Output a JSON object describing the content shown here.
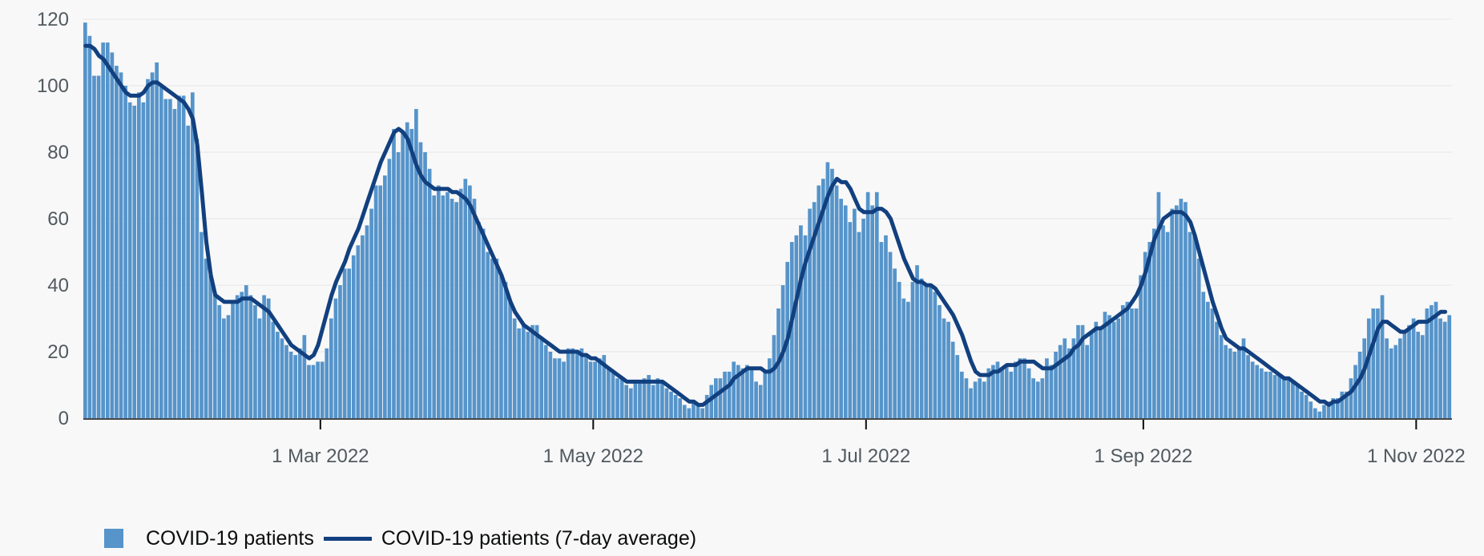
{
  "chart_data": {
    "type": "bar",
    "title": "",
    "xlabel": "",
    "ylabel": "",
    "ylim": [
      0,
      120
    ],
    "y_ticks": [
      0,
      20,
      40,
      60,
      80,
      100,
      120
    ],
    "x_ticks": [
      {
        "date": "2022-03-01",
        "label": "1 Mar 2022"
      },
      {
        "date": "2022-05-01",
        "label": "1 May 2022"
      },
      {
        "date": "2022-07-01",
        "label": "1 Jul 2022"
      },
      {
        "date": "2022-09-01",
        "label": "1 Sep 2022"
      },
      {
        "date": "2022-11-01",
        "label": "1 Nov 2022"
      },
      {
        "date": "2023-01-01",
        "label": ""
      }
    ],
    "x_start": "2022-01-07",
    "grid": true,
    "legend_position": "bottom-left",
    "colors": {
      "bars": "#5694ca",
      "line": "#12407f",
      "grid": "#e6e6e6",
      "axis": "#0b0c0c"
    },
    "series": [
      {
        "name": "COVID-19 patients",
        "kind": "bar",
        "values": [
          119,
          115,
          103,
          103,
          113,
          113,
          110,
          106,
          104,
          100,
          95,
          94,
          98,
          95,
          102,
          104,
          107,
          100,
          96,
          96,
          93,
          97,
          97,
          88,
          98,
          84,
          56,
          48,
          43,
          38,
          34,
          30,
          31,
          35,
          37,
          38,
          40,
          37,
          34,
          30,
          37,
          36,
          29,
          26,
          24,
          22,
          20,
          19,
          21,
          25,
          16,
          16,
          17,
          17,
          21,
          30,
          36,
          40,
          45,
          45,
          49,
          52,
          55,
          58,
          63,
          70,
          70,
          73,
          78,
          87,
          80,
          86,
          89,
          87,
          93,
          83,
          80,
          75,
          67,
          70,
          67,
          68,
          66,
          65,
          69,
          72,
          70,
          66,
          59,
          57,
          50,
          48,
          48,
          43,
          41,
          35,
          30,
          27,
          28,
          26,
          28,
          28,
          24,
          22,
          20,
          18,
          18,
          17,
          21,
          21,
          20,
          21,
          19,
          17,
          17,
          18,
          19,
          15,
          14,
          12,
          12,
          10,
          9,
          11,
          11,
          12,
          13,
          10,
          12,
          11,
          9,
          8,
          7,
          6,
          4,
          3,
          5,
          4,
          3,
          7,
          10,
          12,
          12,
          14,
          14,
          17,
          16,
          15,
          16,
          15,
          11,
          10,
          14,
          18,
          25,
          33,
          40,
          47,
          53,
          55,
          58,
          55,
          63,
          65,
          70,
          72,
          77,
          75,
          70,
          66,
          64,
          59,
          63,
          56,
          60,
          68,
          64,
          68,
          53,
          55,
          50,
          45,
          41,
          36,
          35,
          41,
          46,
          42,
          40,
          40,
          38,
          34,
          30,
          29,
          23,
          19,
          14,
          12,
          9,
          11,
          12,
          11,
          15,
          16,
          17,
          15,
          16,
          14,
          17,
          18,
          18,
          15,
          12,
          11,
          12,
          18,
          16,
          20,
          22,
          24,
          21,
          24,
          28,
          28,
          22,
          26,
          29,
          27,
          32,
          31,
          29,
          30,
          34,
          35,
          33,
          33,
          43,
          50,
          53,
          57,
          68,
          58,
          56,
          63,
          64,
          66,
          65,
          56,
          55,
          48,
          38,
          35,
          33,
          29,
          25,
          22,
          21,
          20,
          21,
          24,
          19,
          17,
          16,
          15,
          14,
          14,
          13,
          13,
          12,
          12,
          11,
          10,
          8,
          7,
          5,
          3,
          2,
          4,
          5,
          6,
          6,
          8,
          8,
          12,
          16,
          20,
          24,
          30,
          33,
          33,
          37,
          24,
          21,
          22,
          24,
          26,
          28,
          30,
          26,
          25,
          33,
          34,
          35,
          30,
          29,
          31
        ]
      },
      {
        "name": "COVID-19 patients (7-day average)",
        "kind": "line",
        "values": [
          112,
          112,
          111,
          109,
          108,
          106,
          104,
          102,
          100,
          98,
          97,
          97,
          97,
          98,
          100,
          101,
          101,
          100,
          99,
          98,
          97,
          96,
          95,
          93,
          90,
          82,
          68,
          53,
          43,
          37,
          36,
          35,
          35,
          35,
          35,
          36,
          36,
          36,
          35,
          34,
          33,
          32,
          30,
          28,
          26,
          24,
          22,
          21,
          20,
          19,
          18,
          19,
          22,
          27,
          32,
          37,
          41,
          44,
          47,
          51,
          54,
          57,
          61,
          65,
          69,
          73,
          77,
          80,
          83,
          86,
          87,
          86,
          84,
          80,
          76,
          73,
          71,
          70,
          69,
          69,
          69,
          69,
          68,
          68,
          67,
          66,
          64,
          61,
          58,
          55,
          52,
          49,
          46,
          43,
          39,
          35,
          32,
          30,
          28,
          27,
          26,
          25,
          24,
          23,
          22,
          21,
          20,
          20,
          20,
          20,
          20,
          19,
          19,
          18,
          18,
          17,
          16,
          15,
          14,
          13,
          12,
          11,
          11,
          11,
          11,
          11,
          11,
          11,
          11,
          11,
          10,
          9,
          8,
          7,
          6,
          5,
          5,
          4,
          4,
          5,
          6,
          7,
          8,
          9,
          10,
          12,
          13,
          14,
          15,
          15,
          15,
          15,
          14,
          14,
          15,
          17,
          20,
          24,
          30,
          36,
          42,
          47,
          51,
          55,
          59,
          63,
          67,
          70,
          72,
          71,
          71,
          69,
          66,
          63,
          62,
          62,
          62,
          63,
          63,
          62,
          60,
          56,
          52,
          48,
          45,
          42,
          41,
          41,
          40,
          40,
          39,
          37,
          35,
          33,
          31,
          28,
          25,
          21,
          17,
          14,
          13,
          13,
          13,
          14,
          14,
          15,
          16,
          16,
          16,
          17,
          17,
          17,
          17,
          16,
          15,
          15,
          15,
          16,
          17,
          18,
          19,
          21,
          22,
          24,
          25,
          26,
          27,
          27,
          28,
          29,
          30,
          31,
          32,
          33,
          35,
          37,
          40,
          44,
          49,
          54,
          57,
          60,
          61,
          62,
          62,
          62,
          61,
          59,
          55,
          50,
          45,
          40,
          35,
          31,
          27,
          24,
          23,
          22,
          21,
          21,
          20,
          19,
          18,
          17,
          16,
          15,
          14,
          13,
          12,
          12,
          11,
          10,
          9,
          8,
          7,
          6,
          5,
          5,
          4,
          5,
          5,
          6,
          7,
          8,
          10,
          12,
          15,
          19,
          23,
          27,
          29,
          29,
          28,
          27,
          26,
          26,
          27,
          28,
          29,
          29,
          29,
          30,
          31,
          32,
          32
        ]
      }
    ]
  },
  "legend": {
    "bar_label": "COVID-19 patients",
    "line_label": "COVID-19 patients (7-day average)"
  }
}
